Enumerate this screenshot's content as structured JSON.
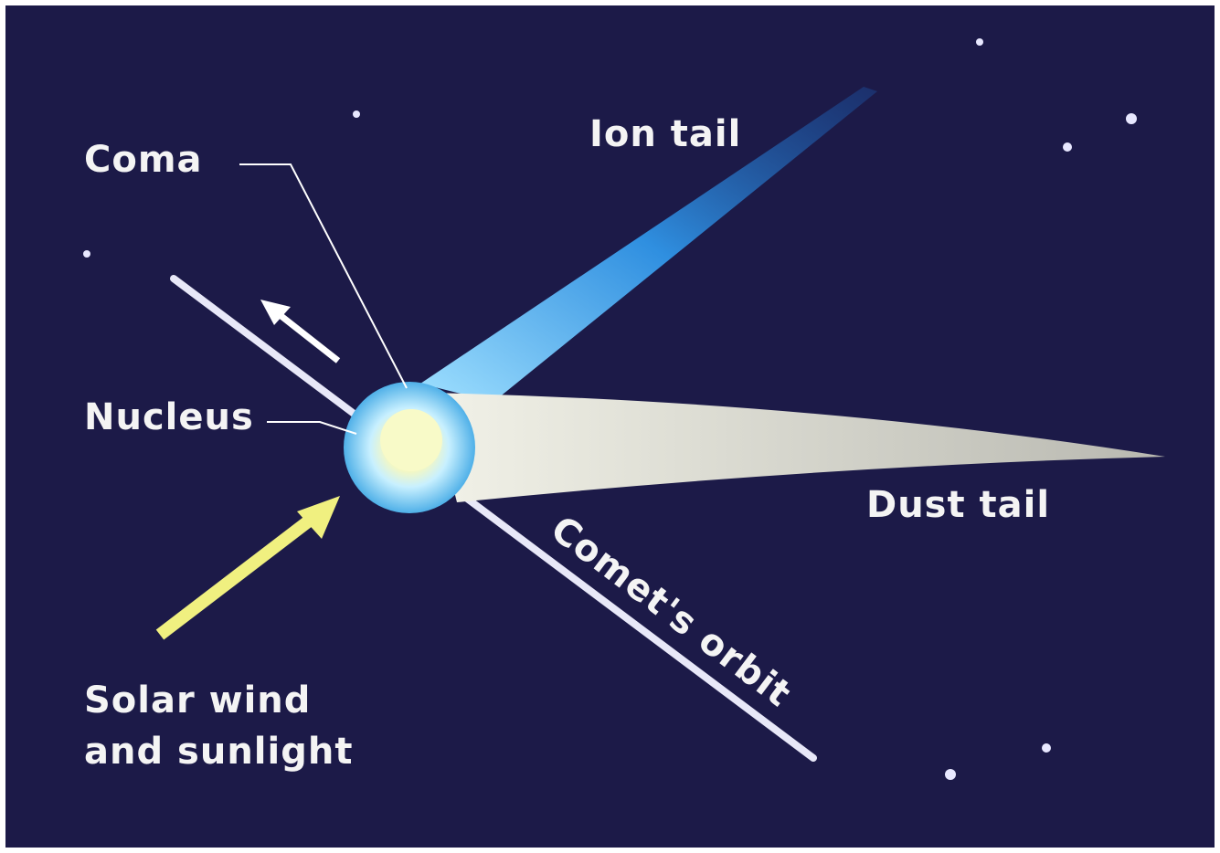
{
  "labels": {
    "coma": "Coma",
    "ion_tail": "Ion tail",
    "nucleus": "Nucleus",
    "dust_tail": "Dust tail",
    "orbit": "Comet's orbit",
    "solar_wind": [
      "Solar wind",
      "and sunlight"
    ]
  }
}
